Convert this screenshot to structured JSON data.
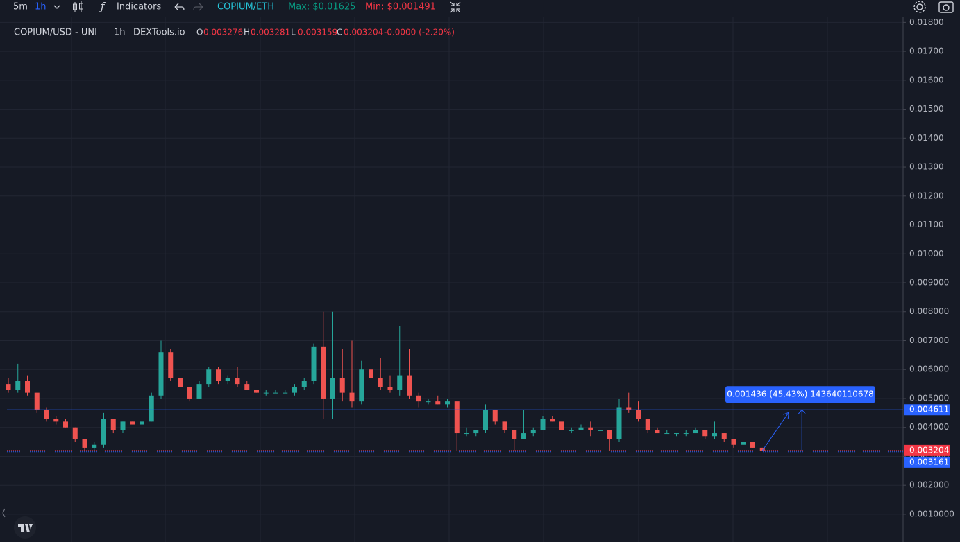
{
  "toolbar": {
    "timeframes": [
      "5m",
      "1h"
    ],
    "indicators": "Indicators",
    "pair": "COPIUM/ETH",
    "max": "Max: $0.01625",
    "min": "Min: $0.001491"
  },
  "legend": {
    "symbol": "COPIUM/USD - UNI",
    "interval": "1h",
    "source": "DEXTools.io",
    "fields": [
      {
        "key": "O",
        "value": "0.003276"
      },
      {
        "key": "H",
        "value": "0.003281"
      },
      {
        "key": "L",
        "value": "0.003159"
      },
      {
        "key": "C",
        "value": "0.003204"
      }
    ],
    "change": "-0.0000 (-2.20%)"
  },
  "chart_data": {
    "type": "candlestick",
    "up_color": "#26a69a",
    "down_color": "#ef5350",
    "open": [
      0.0055,
      0.0053,
      0.0056,
      0.0052,
      0.0046,
      0.0043,
      0.0042,
      0.004,
      0.0036,
      0.0033,
      0.0034,
      0.0043,
      0.0039,
      0.0042,
      0.0041,
      0.0042,
      0.0051,
      0.0066,
      0.0057,
      0.0054,
      0.005,
      0.0055,
      0.006,
      0.0056,
      0.0057,
      0.0055,
      0.0053,
      0.0052,
      0.0052,
      0.0052,
      0.0052,
      0.0054,
      0.0056,
      0.0068,
      0.005,
      0.0057,
      0.0052,
      0.0049,
      0.006,
      0.0057,
      0.0054,
      0.0053,
      0.0058,
      0.0051,
      0.0049,
      0.0049,
      0.0048,
      0.0049,
      0.0038,
      0.0038,
      0.0039,
      0.0046,
      0.0042,
      0.0039,
      0.0036,
      0.0038,
      0.0039,
      0.0043,
      0.0042,
      0.0039,
      0.0039,
      0.004,
      0.0039,
      0.0039,
      0.0036,
      0.0047,
      0.0046,
      0.0043,
      0.0039,
      0.0038,
      0.0038,
      0.0038,
      0.0038,
      0.0039,
      0.0037,
      0.0038,
      0.0036,
      0.0034,
      0.0035,
      0.0033
    ],
    "high": [
      0.0057,
      0.0062,
      0.0058,
      0.0052,
      0.0047,
      0.0044,
      0.0043,
      0.004,
      0.0036,
      0.0035,
      0.0045,
      0.0043,
      0.0042,
      0.0042,
      0.0043,
      0.0052,
      0.007,
      0.0067,
      0.0058,
      0.0054,
      0.0056,
      0.0061,
      0.0061,
      0.0058,
      0.0061,
      0.0056,
      0.0053,
      0.0053,
      0.0053,
      0.0053,
      0.0055,
      0.0057,
      0.0069,
      0.008,
      0.008,
      0.0067,
      0.007,
      0.0063,
      0.0077,
      0.0064,
      0.0058,
      0.0075,
      0.0067,
      0.0052,
      0.005,
      0.0051,
      0.005,
      0.0049,
      0.004,
      0.0039,
      0.0048,
      0.0046,
      0.0042,
      0.0039,
      0.0046,
      0.004,
      0.0044,
      0.0044,
      0.0042,
      0.004,
      0.0041,
      0.0042,
      0.004,
      0.0039,
      0.005,
      0.0052,
      0.0049,
      0.0043,
      0.004,
      0.0039,
      0.0038,
      0.0039,
      0.004,
      0.0039,
      0.0042,
      0.0038,
      0.0036,
      0.0035,
      0.0035,
      0.0033
    ],
    "low": [
      0.0052,
      0.0052,
      0.0051,
      0.0045,
      0.0042,
      0.0041,
      0.004,
      0.0035,
      0.0032,
      0.0032,
      0.0033,
      0.0038,
      0.0038,
      0.0041,
      0.0041,
      0.0042,
      0.005,
      0.0056,
      0.0053,
      0.0049,
      0.005,
      0.0054,
      0.0055,
      0.0055,
      0.0054,
      0.0053,
      0.0052,
      0.0051,
      0.0052,
      0.0052,
      0.0051,
      0.0053,
      0.0055,
      0.0043,
      0.0043,
      0.0049,
      0.0047,
      0.0048,
      0.0052,
      0.0053,
      0.0052,
      0.0051,
      0.005,
      0.0047,
      0.0048,
      0.0048,
      0.0047,
      0.0032,
      0.0037,
      0.0037,
      0.0038,
      0.0041,
      0.0038,
      0.0032,
      0.0036,
      0.0037,
      0.0039,
      0.0042,
      0.0039,
      0.0038,
      0.0039,
      0.0037,
      0.0038,
      0.0032,
      0.0035,
      0.0045,
      0.0042,
      0.0038,
      0.0038,
      0.0038,
      0.0037,
      0.0037,
      0.0038,
      0.0036,
      0.0036,
      0.0035,
      0.0033,
      0.0034,
      0.0033,
      0.0032
    ],
    "close": [
      0.0053,
      0.0056,
      0.0052,
      0.0046,
      0.0043,
      0.0042,
      0.004,
      0.0036,
      0.0033,
      0.0034,
      0.0043,
      0.0039,
      0.0042,
      0.0041,
      0.0042,
      0.0051,
      0.0066,
      0.0057,
      0.0054,
      0.005,
      0.0055,
      0.006,
      0.0056,
      0.0057,
      0.0055,
      0.0053,
      0.0052,
      0.0052,
      0.0052,
      0.0052,
      0.0054,
      0.0056,
      0.0068,
      0.005,
      0.0057,
      0.0052,
      0.0049,
      0.006,
      0.0057,
      0.0054,
      0.0053,
      0.0058,
      0.0051,
      0.0049,
      0.0049,
      0.0048,
      0.0049,
      0.0038,
      0.0038,
      0.0039,
      0.0046,
      0.0042,
      0.0039,
      0.0036,
      0.0038,
      0.0039,
      0.0043,
      0.0042,
      0.0039,
      0.0039,
      0.004,
      0.0039,
      0.0039,
      0.0036,
      0.0047,
      0.0046,
      0.0043,
      0.0039,
      0.0038,
      0.0038,
      0.0038,
      0.0038,
      0.0039,
      0.0037,
      0.0038,
      0.0036,
      0.0034,
      0.0035,
      0.0033,
      0.0032
    ],
    "ylim": [
      4e-05,
      0.0182
    ],
    "yticks": [
      {
        "value": 0.018,
        "label": "0.01800"
      },
      {
        "value": 0.017,
        "label": "0.01700"
      },
      {
        "value": 0.016,
        "label": "0.01600"
      },
      {
        "value": 0.015,
        "label": "0.01500"
      },
      {
        "value": 0.014,
        "label": "0.01400"
      },
      {
        "value": 0.013,
        "label": "0.01300"
      },
      {
        "value": 0.012,
        "label": "0.01200"
      },
      {
        "value": 0.011,
        "label": "0.01100"
      },
      {
        "value": 0.01,
        "label": "0.01000"
      },
      {
        "value": 0.009,
        "label": "0.009000"
      },
      {
        "value": 0.008,
        "label": "0.008000"
      },
      {
        "value": 0.007,
        "label": "0.007000"
      },
      {
        "value": 0.006,
        "label": "0.006000"
      },
      {
        "value": 0.005,
        "label": "0.005000"
      },
      {
        "value": 0.004,
        "label": "0.004000"
      },
      {
        "value": 0.003,
        "label": "0.003000"
      },
      {
        "value": 0.002,
        "label": "0.002000"
      },
      {
        "value": 0.001,
        "label": "0.0010000"
      }
    ],
    "grid": true,
    "price_lines": [
      {
        "value": 0.004611,
        "color": "#2962ff",
        "style": "solid"
      },
      {
        "value": 0.003204,
        "color": "#f23645",
        "style": "dotted"
      },
      {
        "value": 0.003161,
        "color": "#2962ff",
        "style": "dotted"
      }
    ],
    "measure_label": "0.001436 (45.43%) 143640110678"
  }
}
